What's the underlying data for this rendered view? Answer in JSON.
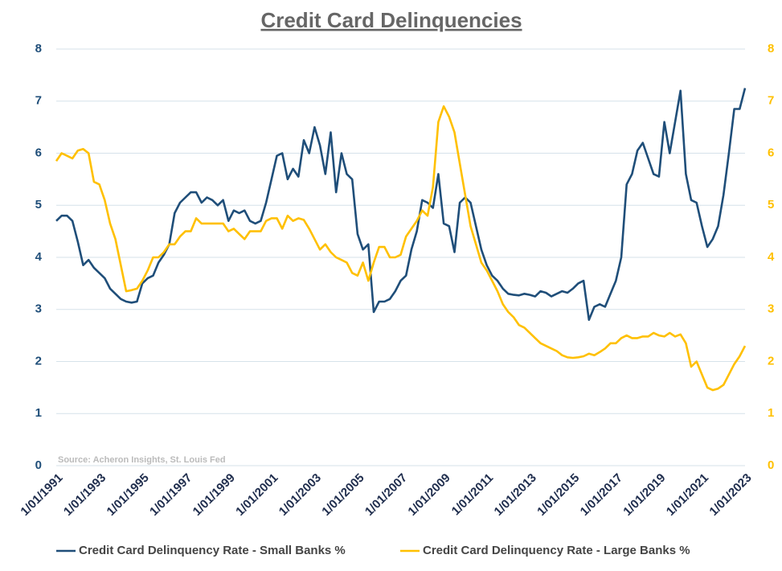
{
  "chart_data": {
    "type": "line",
    "title": "Credit Card Delinquencies",
    "annotation": "Source: Acheron Insights, St. Louis Fed",
    "categories": [
      "1/01/1991",
      null,
      null,
      null,
      null,
      null,
      null,
      null,
      "1/01/1993",
      null,
      null,
      null,
      null,
      null,
      null,
      null,
      "1/01/1995",
      null,
      null,
      null,
      null,
      null,
      null,
      null,
      "1/01/1997",
      null,
      null,
      null,
      null,
      null,
      null,
      null,
      "1/01/1999",
      null,
      null,
      null,
      null,
      null,
      null,
      null,
      "1/01/2001",
      null,
      null,
      null,
      null,
      null,
      null,
      null,
      "1/01/2003",
      null,
      null,
      null,
      null,
      null,
      null,
      null,
      "1/01/2005",
      null,
      null,
      null,
      null,
      null,
      null,
      null,
      "1/01/2007",
      null,
      null,
      null,
      null,
      null,
      null,
      null,
      "1/01/2009",
      null,
      null,
      null,
      null,
      null,
      null,
      null,
      "1/01/2011",
      null,
      null,
      null,
      null,
      null,
      null,
      null,
      "1/01/2013",
      null,
      null,
      null,
      null,
      null,
      null,
      null,
      "1/01/2015",
      null,
      null,
      null,
      null,
      null,
      null,
      null,
      "1/01/2017",
      null,
      null,
      null,
      null,
      null,
      null,
      null,
      "1/01/2019",
      null,
      null,
      null,
      null,
      null,
      null,
      null,
      "1/01/2021",
      null,
      null,
      null,
      null,
      null,
      null,
      null,
      "1/01/2023"
    ],
    "series": [
      {
        "name": "Credit Card Delinquency Rate - Small Banks %",
        "color": "#1f4e79",
        "values": [
          4.7,
          4.8,
          4.8,
          4.7,
          4.3,
          3.85,
          3.95,
          3.8,
          3.7,
          3.6,
          3.4,
          3.3,
          3.2,
          3.15,
          3.13,
          3.15,
          3.5,
          3.6,
          3.65,
          3.9,
          4.05,
          4.25,
          4.85,
          5.05,
          5.15,
          5.25,
          5.25,
          5.05,
          5.15,
          5.1,
          5.0,
          5.1,
          4.7,
          4.9,
          4.85,
          4.9,
          4.7,
          4.65,
          4.7,
          5.05,
          5.5,
          5.95,
          6.0,
          5.5,
          5.7,
          5.55,
          6.25,
          6.0,
          6.5,
          6.15,
          5.6,
          6.4,
          5.25,
          6.0,
          5.6,
          5.5,
          4.45,
          4.15,
          4.25,
          2.95,
          3.15,
          3.15,
          3.2,
          3.35,
          3.55,
          3.65,
          4.15,
          4.5,
          5.1,
          5.05,
          4.95,
          5.6,
          4.65,
          4.6,
          4.1,
          5.05,
          5.15,
          5.05,
          4.6,
          4.15,
          3.85,
          3.65,
          3.55,
          3.4,
          3.3,
          3.28,
          3.27,
          3.3,
          3.28,
          3.25,
          3.35,
          3.32,
          3.25,
          3.3,
          3.35,
          3.32,
          3.4,
          3.5,
          3.55,
          2.8,
          3.05,
          3.1,
          3.05,
          3.3,
          3.55,
          4.0,
          5.4,
          5.6,
          6.05,
          6.2,
          5.9,
          5.6,
          5.55,
          6.6,
          6.0,
          6.6,
          7.2,
          5.6,
          5.1,
          5.05,
          4.6,
          4.2,
          4.35,
          4.6,
          5.2,
          6.0,
          6.85,
          6.85,
          7.25
        ]
      },
      {
        "name": "Credit Card Delinquency Rate - Large Banks %",
        "color": "#ffc000",
        "axis": "y2",
        "values": [
          5.85,
          6.0,
          5.95,
          5.9,
          6.05,
          6.08,
          6.0,
          5.45,
          5.4,
          5.1,
          4.65,
          4.35,
          3.85,
          3.35,
          3.37,
          3.4,
          3.55,
          3.75,
          4.0,
          4.0,
          4.1,
          4.25,
          4.25,
          4.4,
          4.5,
          4.5,
          4.75,
          4.65,
          4.65,
          4.65,
          4.65,
          4.65,
          4.5,
          4.55,
          4.45,
          4.35,
          4.5,
          4.5,
          4.5,
          4.7,
          4.75,
          4.75,
          4.55,
          4.8,
          4.7,
          4.75,
          4.72,
          4.55,
          4.35,
          4.15,
          4.25,
          4.1,
          4.0,
          3.95,
          3.9,
          3.7,
          3.65,
          3.9,
          3.55,
          3.9,
          4.2,
          4.2,
          4.0,
          4.0,
          4.05,
          4.4,
          4.55,
          4.7,
          4.9,
          4.8,
          5.35,
          6.6,
          6.9,
          6.7,
          6.4,
          5.8,
          5.2,
          4.6,
          4.25,
          3.9,
          3.75,
          3.55,
          3.35,
          3.1,
          2.95,
          2.85,
          2.7,
          2.65,
          2.55,
          2.45,
          2.35,
          2.3,
          2.25,
          2.2,
          2.12,
          2.08,
          2.07,
          2.08,
          2.1,
          2.15,
          2.12,
          2.18,
          2.25,
          2.35,
          2.35,
          2.45,
          2.5,
          2.45,
          2.45,
          2.48,
          2.48,
          2.55,
          2.5,
          2.48,
          2.55,
          2.48,
          2.52,
          2.35,
          1.9,
          2.0,
          1.75,
          1.5,
          1.45,
          1.48,
          1.55,
          1.75,
          1.95,
          2.1,
          2.3
        ]
      }
    ],
    "ylim": [
      0,
      8
    ],
    "yticks": [
      0,
      1,
      2,
      3,
      4,
      5,
      6,
      7,
      8
    ],
    "y2lim": [
      0,
      8
    ],
    "y2ticks": [
      0,
      1,
      2,
      3,
      4,
      5,
      6,
      7,
      8
    ],
    "grid": true,
    "legend": "bottom"
  }
}
